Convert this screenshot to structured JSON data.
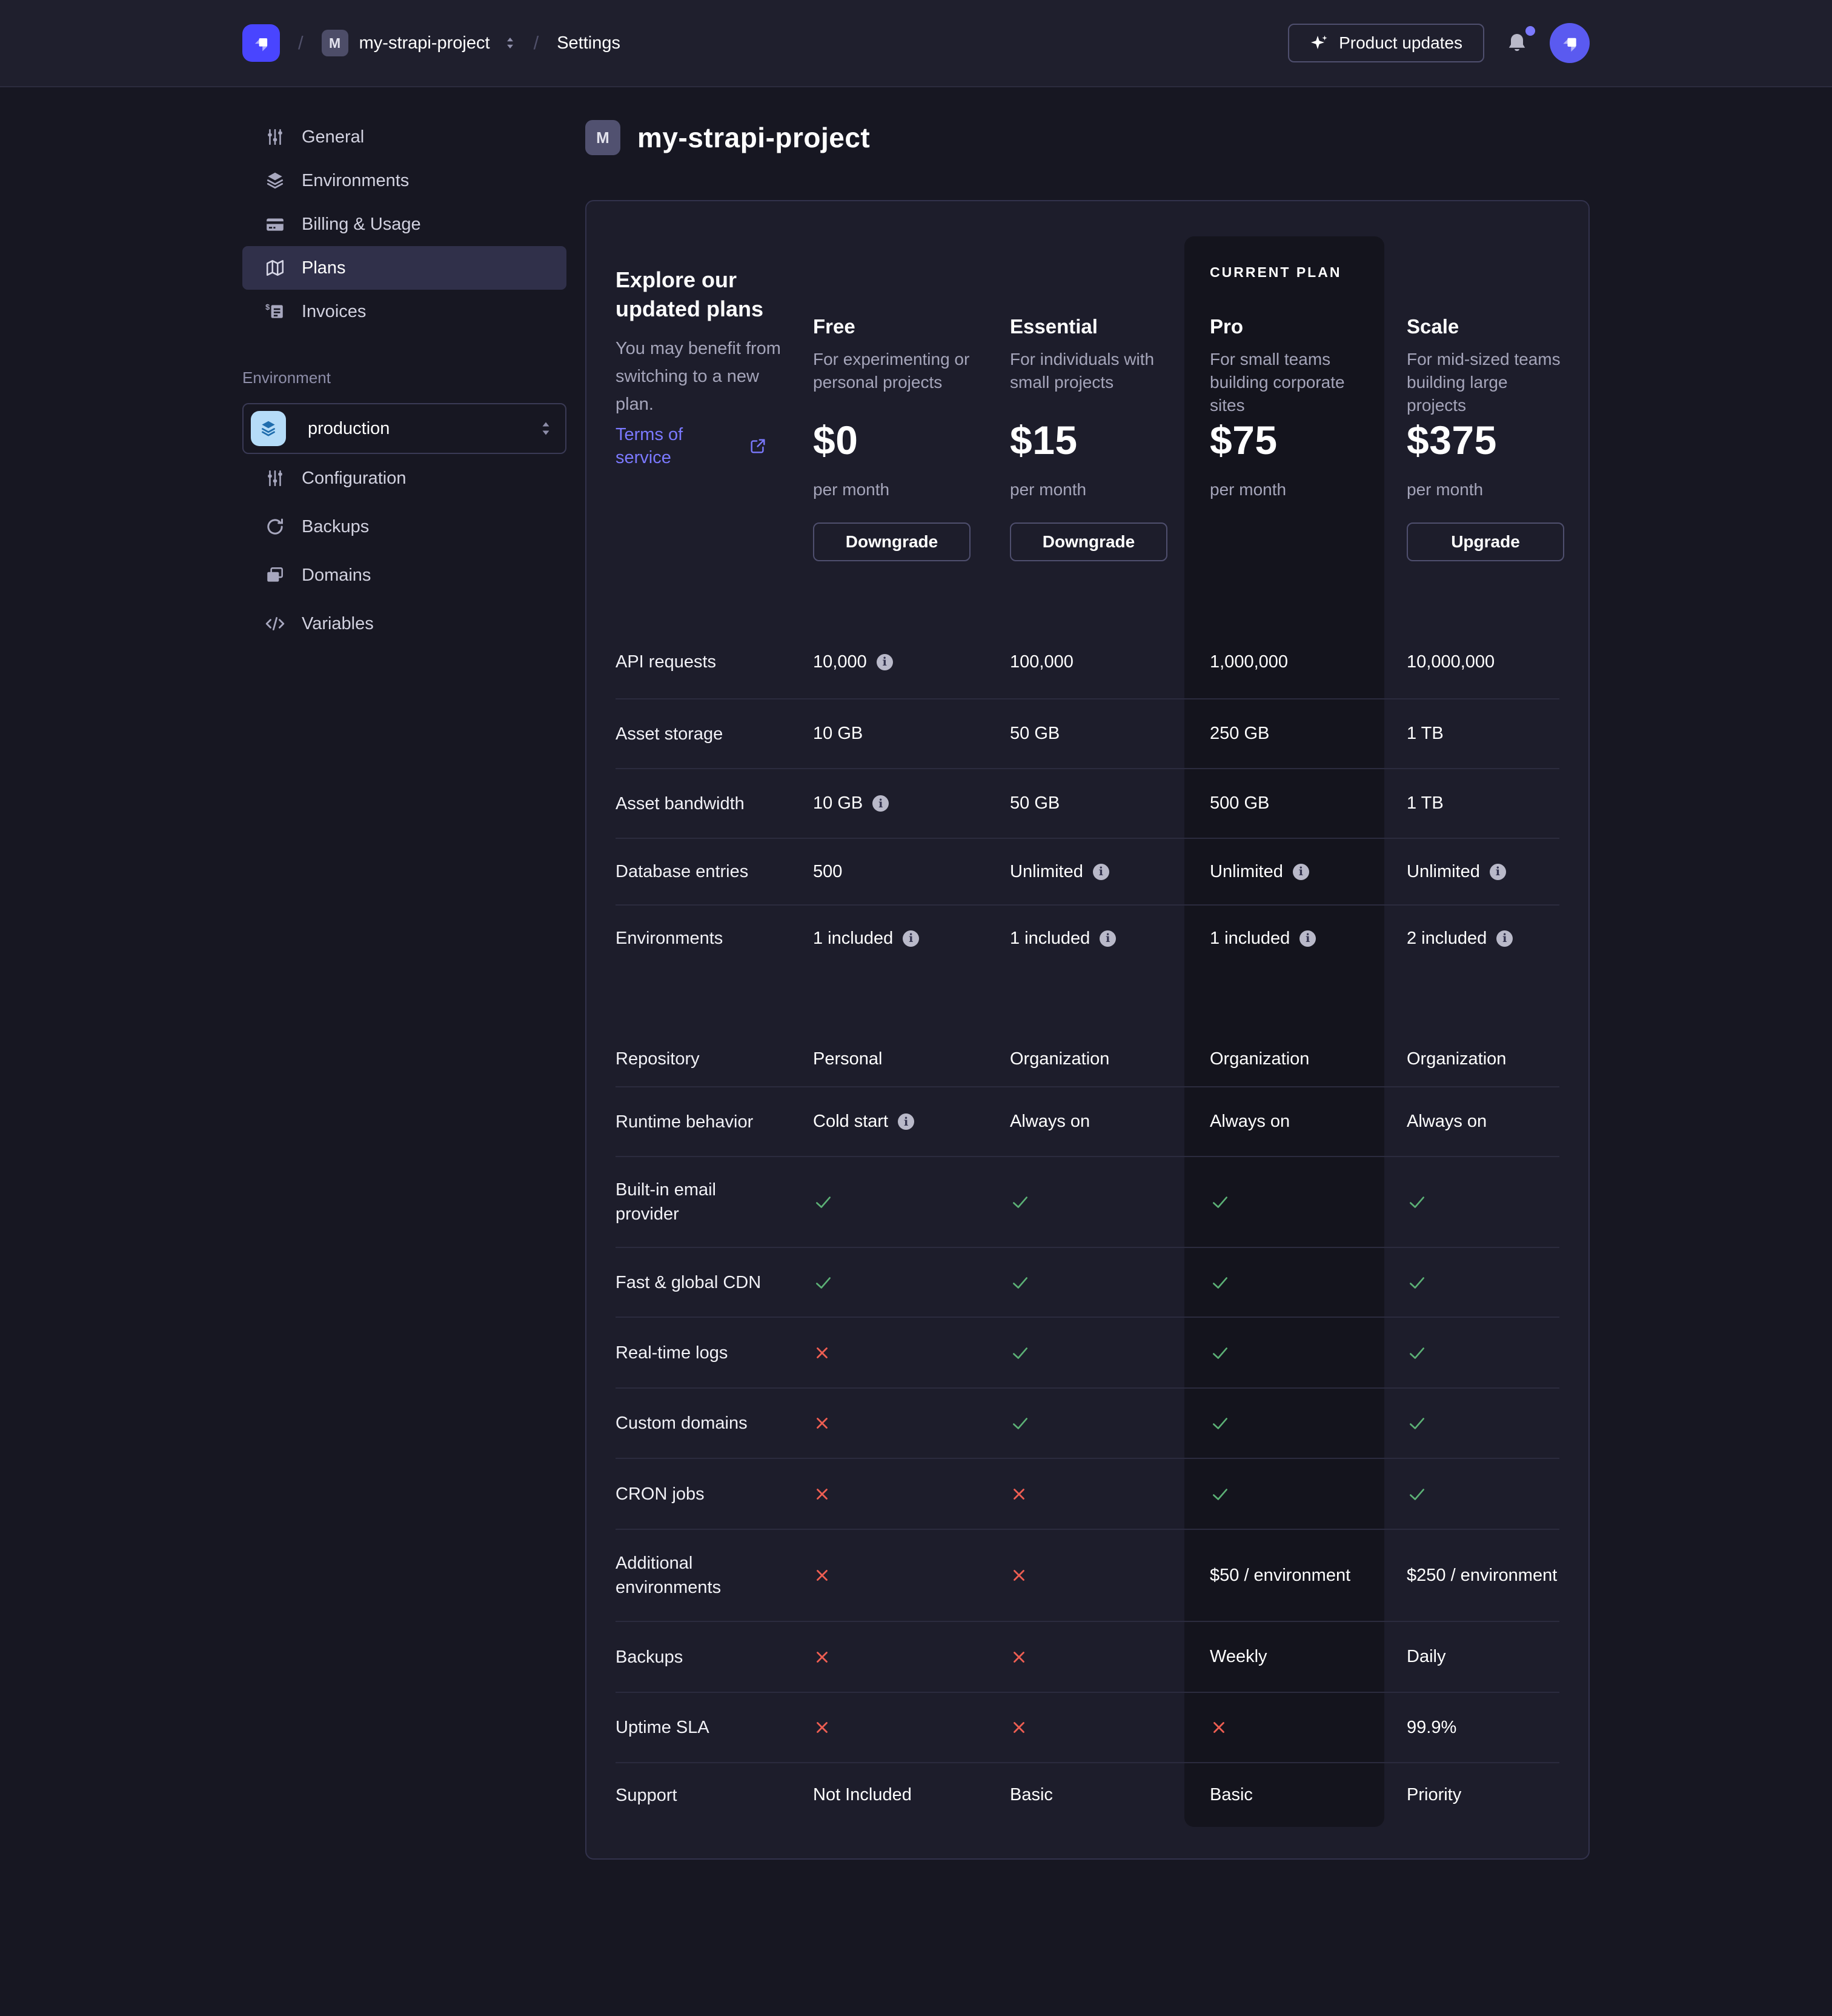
{
  "header": {
    "project_badge": "M",
    "project_name": "my-strapi-project",
    "settings_label": "Settings",
    "product_updates_label": "Product updates"
  },
  "sidebar": {
    "items": [
      {
        "label": "General",
        "icon": "sliders-icon"
      },
      {
        "label": "Environments",
        "icon": "layers-icon"
      },
      {
        "label": "Billing & Usage",
        "icon": "credit-card-icon"
      },
      {
        "label": "Plans",
        "icon": "map-icon",
        "active": true
      },
      {
        "label": "Invoices",
        "icon": "invoice-icon"
      }
    ],
    "environment_section_label": "Environment",
    "environment_select_value": "production",
    "environment_items": [
      {
        "label": "Configuration",
        "icon": "sliders-icon"
      },
      {
        "label": "Backups",
        "icon": "refresh-icon"
      },
      {
        "label": "Domains",
        "icon": "windows-icon"
      },
      {
        "label": "Variables",
        "icon": "code-icon"
      }
    ]
  },
  "main": {
    "title_badge": "M",
    "title": "my-strapi-project"
  },
  "plans": {
    "intro_heading": "Explore our updated plans",
    "intro_description": "You may benefit from switching to a new plan.",
    "terms_link": "Terms of service",
    "current_plan_label": "CURRENT PLAN",
    "columns": [
      {
        "name": "Free",
        "description": "For experimenting or personal projects",
        "price": "$0",
        "period": "per month",
        "action": "Downgrade",
        "current": false
      },
      {
        "name": "Essential",
        "description": "For individuals with small projects",
        "price": "$15",
        "period": "per month",
        "action": "Downgrade",
        "current": false
      },
      {
        "name": "Pro",
        "description": "For small teams building corporate sites",
        "price": "$75",
        "period": "per month",
        "action": null,
        "current": true
      },
      {
        "name": "Scale",
        "description": "For mid-sized teams building large projects",
        "price": "$375",
        "period": "per month",
        "action": "Upgrade",
        "current": false
      }
    ],
    "features": [
      {
        "label": "API requests",
        "values": [
          {
            "t": "10,000",
            "info": true
          },
          {
            "t": "100,000"
          },
          {
            "t": "1,000,000"
          },
          {
            "t": "10,000,000"
          }
        ]
      },
      {
        "label": "Asset storage",
        "values": [
          {
            "t": "10 GB"
          },
          {
            "t": "50 GB"
          },
          {
            "t": "250 GB"
          },
          {
            "t": "1 TB"
          }
        ]
      },
      {
        "label": "Asset bandwidth",
        "values": [
          {
            "t": "10 GB",
            "info": true
          },
          {
            "t": "50 GB"
          },
          {
            "t": "500 GB"
          },
          {
            "t": "1 TB"
          }
        ]
      },
      {
        "label": "Database entries",
        "values": [
          {
            "t": "500"
          },
          {
            "t": "Unlimited",
            "info": true
          },
          {
            "t": "Unlimited",
            "info": true
          },
          {
            "t": "Unlimited",
            "info": true
          }
        ]
      },
      {
        "label": "Environments",
        "values": [
          {
            "t": "1 included",
            "info": true
          },
          {
            "t": "1 included",
            "info": true
          },
          {
            "t": "1 included",
            "info": true
          },
          {
            "t": "2 included",
            "info": true
          }
        ]
      },
      {
        "label": "Repository",
        "values": [
          {
            "t": "Personal"
          },
          {
            "t": "Organization"
          },
          {
            "t": "Organization"
          },
          {
            "t": "Organization"
          }
        ]
      },
      {
        "label": "Runtime behavior",
        "values": [
          {
            "t": "Cold start",
            "info": true
          },
          {
            "t": "Always on"
          },
          {
            "t": "Always on"
          },
          {
            "t": "Always on"
          }
        ]
      },
      {
        "label": "Built-in email provider",
        "values": [
          {
            "check": true
          },
          {
            "check": true
          },
          {
            "check": true
          },
          {
            "check": true
          }
        ]
      },
      {
        "label": "Fast & global CDN",
        "values": [
          {
            "check": true
          },
          {
            "check": true
          },
          {
            "check": true
          },
          {
            "check": true
          }
        ]
      },
      {
        "label": "Real-time logs",
        "values": [
          {
            "cross": true
          },
          {
            "check": true
          },
          {
            "check": true
          },
          {
            "check": true
          }
        ]
      },
      {
        "label": "Custom domains",
        "values": [
          {
            "cross": true
          },
          {
            "check": true
          },
          {
            "check": true
          },
          {
            "check": true
          }
        ]
      },
      {
        "label": "CRON jobs",
        "values": [
          {
            "cross": true
          },
          {
            "cross": true
          },
          {
            "check": true
          },
          {
            "check": true
          }
        ]
      },
      {
        "label": "Additional environments",
        "values": [
          {
            "cross": true
          },
          {
            "cross": true
          },
          {
            "t": "$50 / environment"
          },
          {
            "t": "$250 / environment"
          }
        ]
      },
      {
        "label": "Backups",
        "values": [
          {
            "cross": true
          },
          {
            "cross": true
          },
          {
            "t": "Weekly"
          },
          {
            "t": "Daily"
          }
        ]
      },
      {
        "label": "Uptime SLA",
        "values": [
          {
            "cross": true
          },
          {
            "cross": true
          },
          {
            "cross": true
          },
          {
            "t": "99.9%"
          }
        ]
      },
      {
        "label": "Support",
        "values": [
          {
            "t": "Not Included"
          },
          {
            "t": "Basic"
          },
          {
            "t": "Basic"
          },
          {
            "t": "Priority"
          }
        ]
      }
    ],
    "colors": {
      "brand": "#4945ff",
      "link": "#7b79ff",
      "check": "#5cb176",
      "cross": "#ee5e52",
      "environment_tile": "#b5dcf8"
    }
  }
}
